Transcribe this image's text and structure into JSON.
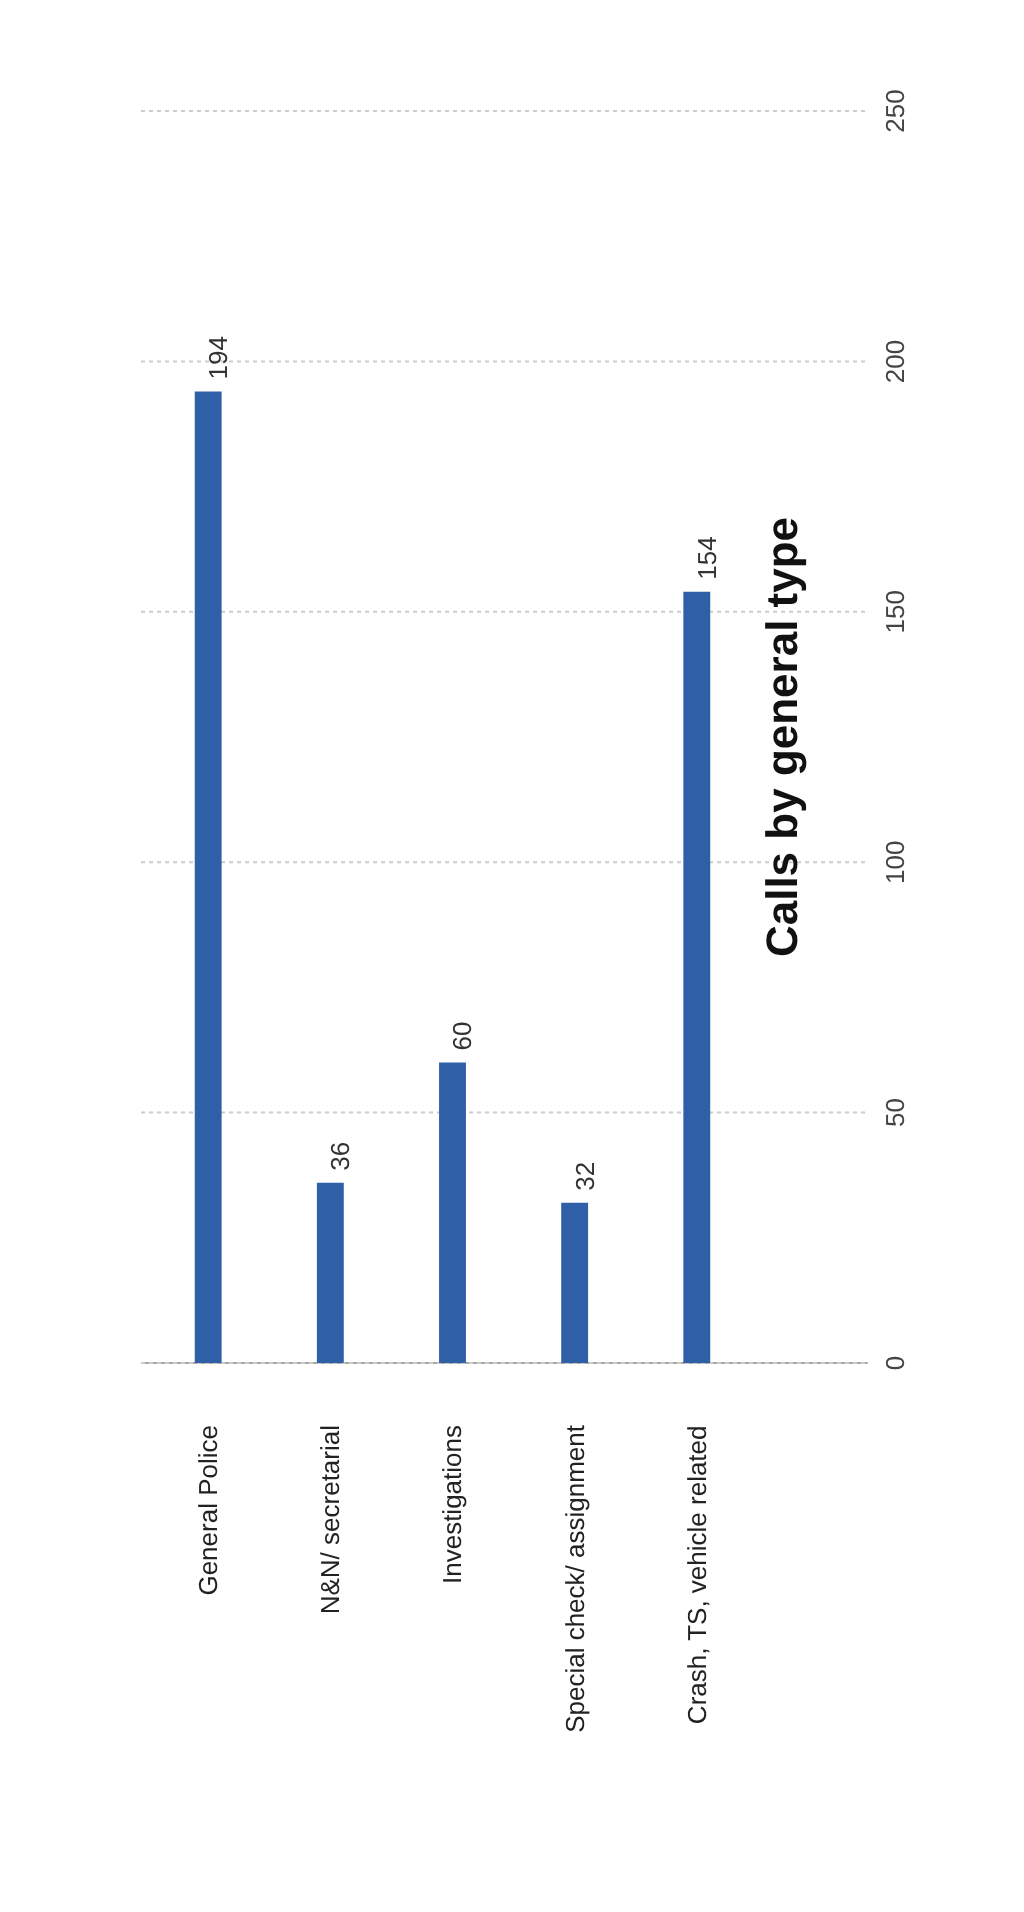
{
  "chart_data": {
    "type": "bar",
    "title": "Calls by general type",
    "categories": [
      "General Police",
      "N&N/ secretarial",
      "Investigations",
      "Special check/ assignment",
      "Crash, TS, vehicle related"
    ],
    "values": [
      194,
      36,
      60,
      32,
      154
    ],
    "color": "#2f5fa7",
    "ylim": [
      0,
      250
    ],
    "yticks": [
      0,
      50,
      100,
      150,
      200,
      250
    ],
    "grid": "y",
    "data_labels": true
  }
}
